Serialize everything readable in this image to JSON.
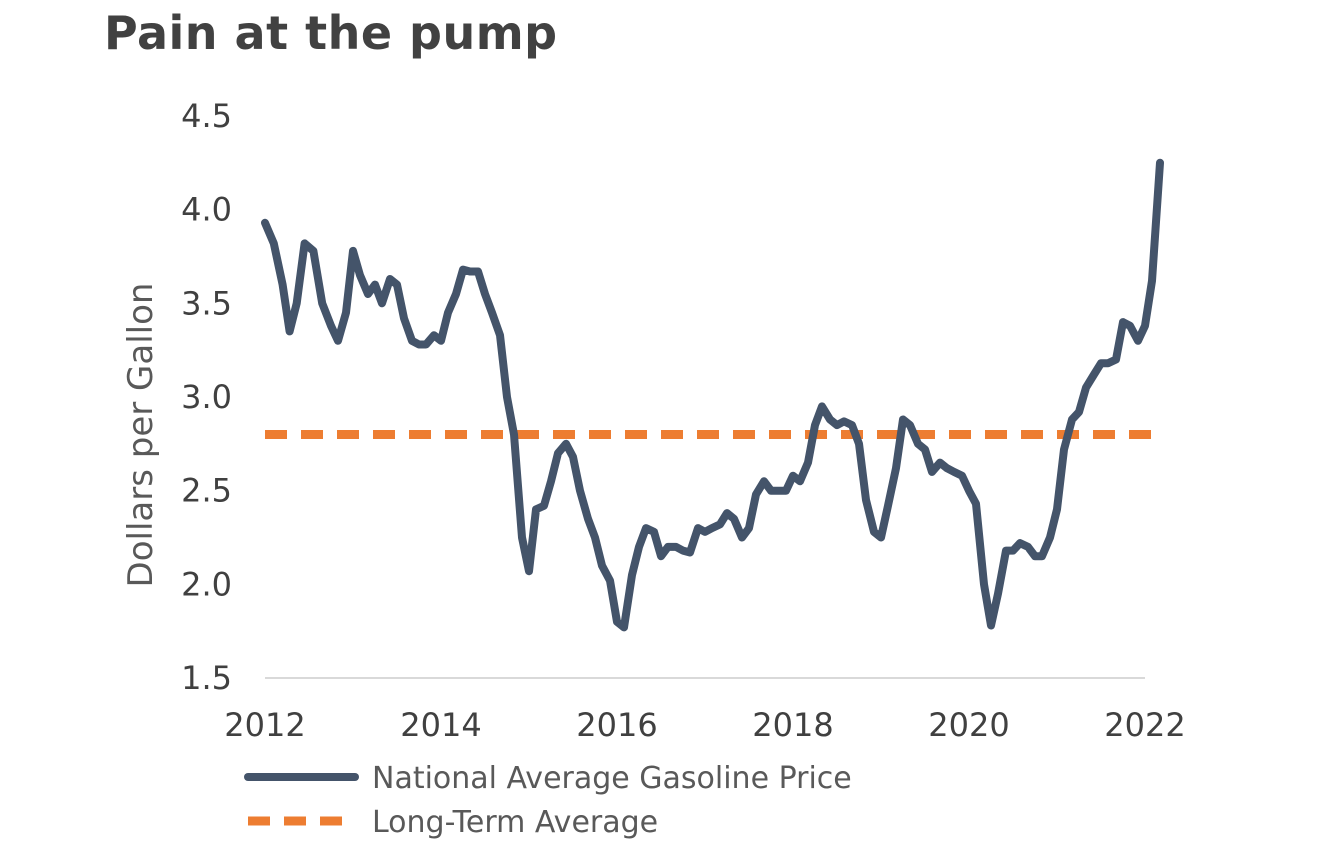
{
  "chart_data": {
    "type": "line",
    "title": "Pain at the pump",
    "xlabel": "",
    "ylabel": "Dollars per Gallon",
    "xlim": [
      2012,
      2022
    ],
    "ylim": [
      1.5,
      4.5
    ],
    "x_ticks": [
      "2012",
      "2014",
      "2016",
      "2018",
      "2020",
      "2022"
    ],
    "y_ticks": [
      "1.5",
      "2.0",
      "2.5",
      "3.0",
      "3.5",
      "4.0",
      "4.5"
    ],
    "grid": false,
    "legend_position": "bottom-left",
    "series": [
      {
        "name": "National Average Gasoline Price",
        "color": "#44546a",
        "style": "solid",
        "points": [
          [
            2012.0,
            3.93
          ],
          [
            2012.1,
            3.82
          ],
          [
            2012.2,
            3.6
          ],
          [
            2012.28,
            3.35
          ],
          [
            2012.36,
            3.5
          ],
          [
            2012.45,
            3.82
          ],
          [
            2012.55,
            3.78
          ],
          [
            2012.65,
            3.5
          ],
          [
            2012.75,
            3.38
          ],
          [
            2012.83,
            3.3
          ],
          [
            2012.92,
            3.45
          ],
          [
            2013.0,
            3.78
          ],
          [
            2013.08,
            3.65
          ],
          [
            2013.17,
            3.55
          ],
          [
            2013.25,
            3.6
          ],
          [
            2013.33,
            3.5
          ],
          [
            2013.42,
            3.63
          ],
          [
            2013.5,
            3.6
          ],
          [
            2013.58,
            3.42
          ],
          [
            2013.67,
            3.3
          ],
          [
            2013.75,
            3.28
          ],
          [
            2013.83,
            3.28
          ],
          [
            2013.92,
            3.33
          ],
          [
            2014.0,
            3.3
          ],
          [
            2014.08,
            3.45
          ],
          [
            2014.17,
            3.55
          ],
          [
            2014.25,
            3.68
          ],
          [
            2014.33,
            3.67
          ],
          [
            2014.42,
            3.67
          ],
          [
            2014.5,
            3.55
          ],
          [
            2014.58,
            3.45
          ],
          [
            2014.67,
            3.33
          ],
          [
            2014.75,
            3.0
          ],
          [
            2014.83,
            2.8
          ],
          [
            2014.92,
            2.25
          ],
          [
            2015.0,
            2.07
          ],
          [
            2015.08,
            2.4
          ],
          [
            2015.17,
            2.42
          ],
          [
            2015.25,
            2.55
          ],
          [
            2015.33,
            2.7
          ],
          [
            2015.42,
            2.75
          ],
          [
            2015.5,
            2.68
          ],
          [
            2015.58,
            2.5
          ],
          [
            2015.67,
            2.35
          ],
          [
            2015.75,
            2.25
          ],
          [
            2015.83,
            2.1
          ],
          [
            2015.92,
            2.02
          ],
          [
            2016.0,
            1.8
          ],
          [
            2016.08,
            1.77
          ],
          [
            2016.17,
            2.05
          ],
          [
            2016.25,
            2.2
          ],
          [
            2016.33,
            2.3
          ],
          [
            2016.42,
            2.28
          ],
          [
            2016.5,
            2.15
          ],
          [
            2016.58,
            2.2
          ],
          [
            2016.67,
            2.2
          ],
          [
            2016.75,
            2.18
          ],
          [
            2016.83,
            2.17
          ],
          [
            2016.92,
            2.3
          ],
          [
            2017.0,
            2.28
          ],
          [
            2017.08,
            2.3
          ],
          [
            2017.17,
            2.32
          ],
          [
            2017.25,
            2.38
          ],
          [
            2017.33,
            2.35
          ],
          [
            2017.42,
            2.25
          ],
          [
            2017.5,
            2.3
          ],
          [
            2017.58,
            2.48
          ],
          [
            2017.67,
            2.55
          ],
          [
            2017.75,
            2.5
          ],
          [
            2017.83,
            2.5
          ],
          [
            2017.92,
            2.5
          ],
          [
            2018.0,
            2.58
          ],
          [
            2018.08,
            2.55
          ],
          [
            2018.17,
            2.65
          ],
          [
            2018.25,
            2.85
          ],
          [
            2018.33,
            2.95
          ],
          [
            2018.42,
            2.88
          ],
          [
            2018.5,
            2.85
          ],
          [
            2018.58,
            2.87
          ],
          [
            2018.67,
            2.85
          ],
          [
            2018.75,
            2.75
          ],
          [
            2018.83,
            2.45
          ],
          [
            2018.92,
            2.28
          ],
          [
            2019.0,
            2.25
          ],
          [
            2019.08,
            2.42
          ],
          [
            2019.17,
            2.62
          ],
          [
            2019.25,
            2.88
          ],
          [
            2019.33,
            2.85
          ],
          [
            2019.42,
            2.75
          ],
          [
            2019.5,
            2.72
          ],
          [
            2019.58,
            2.6
          ],
          [
            2019.67,
            2.65
          ],
          [
            2019.75,
            2.62
          ],
          [
            2019.83,
            2.6
          ],
          [
            2019.92,
            2.58
          ],
          [
            2020.0,
            2.5
          ],
          [
            2020.08,
            2.43
          ],
          [
            2020.17,
            2.0
          ],
          [
            2020.25,
            1.78
          ],
          [
            2020.33,
            1.95
          ],
          [
            2020.42,
            2.18
          ],
          [
            2020.5,
            2.18
          ],
          [
            2020.58,
            2.22
          ],
          [
            2020.67,
            2.2
          ],
          [
            2020.75,
            2.15
          ],
          [
            2020.83,
            2.15
          ],
          [
            2020.92,
            2.25
          ],
          [
            2021.0,
            2.4
          ],
          [
            2021.08,
            2.72
          ],
          [
            2021.17,
            2.88
          ],
          [
            2021.25,
            2.92
          ],
          [
            2021.33,
            3.05
          ],
          [
            2021.42,
            3.12
          ],
          [
            2021.5,
            3.18
          ],
          [
            2021.58,
            3.18
          ],
          [
            2021.67,
            3.2
          ],
          [
            2021.75,
            3.4
          ],
          [
            2021.83,
            3.38
          ],
          [
            2021.92,
            3.3
          ],
          [
            2022.0,
            3.38
          ],
          [
            2022.08,
            3.62
          ],
          [
            2022.17,
            4.25
          ]
        ]
      },
      {
        "name": "Long-Term Average",
        "color": "#ed7d31",
        "style": "dashed",
        "points": [
          [
            2012.0,
            2.8
          ],
          [
            2022.17,
            2.8
          ]
        ]
      }
    ]
  }
}
